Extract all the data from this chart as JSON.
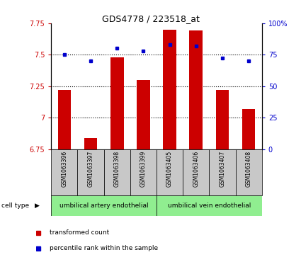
{
  "title": "GDS4778 / 223518_at",
  "samples": [
    "GSM1063396",
    "GSM1063397",
    "GSM1063398",
    "GSM1063399",
    "GSM1063405",
    "GSM1063406",
    "GSM1063407",
    "GSM1063408"
  ],
  "red_values": [
    7.22,
    6.84,
    7.48,
    7.3,
    7.7,
    7.69,
    7.22,
    7.07
  ],
  "blue_values": [
    75,
    70,
    80,
    78,
    83,
    82,
    72,
    70
  ],
  "ylim_left": [
    6.75,
    7.75
  ],
  "ylim_right": [
    0,
    100
  ],
  "yticks_left": [
    6.75,
    7.0,
    7.25,
    7.5,
    7.75
  ],
  "yticks_right": [
    0,
    25,
    50,
    75,
    100
  ],
  "ytick_labels_left": [
    "6.75",
    "7",
    "7.25",
    "7.5",
    "7.75"
  ],
  "ytick_labels_right": [
    "0",
    "25",
    "50",
    "75",
    "100%"
  ],
  "group1_label": "umbilical artery endothelial",
  "group2_label": "umbilical vein endothelial",
  "group1_indices": [
    0,
    1,
    2,
    3
  ],
  "group2_indices": [
    4,
    5,
    6,
    7
  ],
  "cell_type_label": "cell type",
  "legend_red": "transformed count",
  "legend_blue": "percentile rank within the sample",
  "bar_color": "#cc0000",
  "dot_color": "#0000cc",
  "group_color": "#90ee90",
  "sample_box_color": "#c8c8c8",
  "bar_bottom": 6.75,
  "bar_width": 0.5,
  "grid_yticks": [
    7.0,
    7.25,
    7.5
  ],
  "tick_color_left": "#cc0000",
  "tick_color_right": "#0000cc"
}
